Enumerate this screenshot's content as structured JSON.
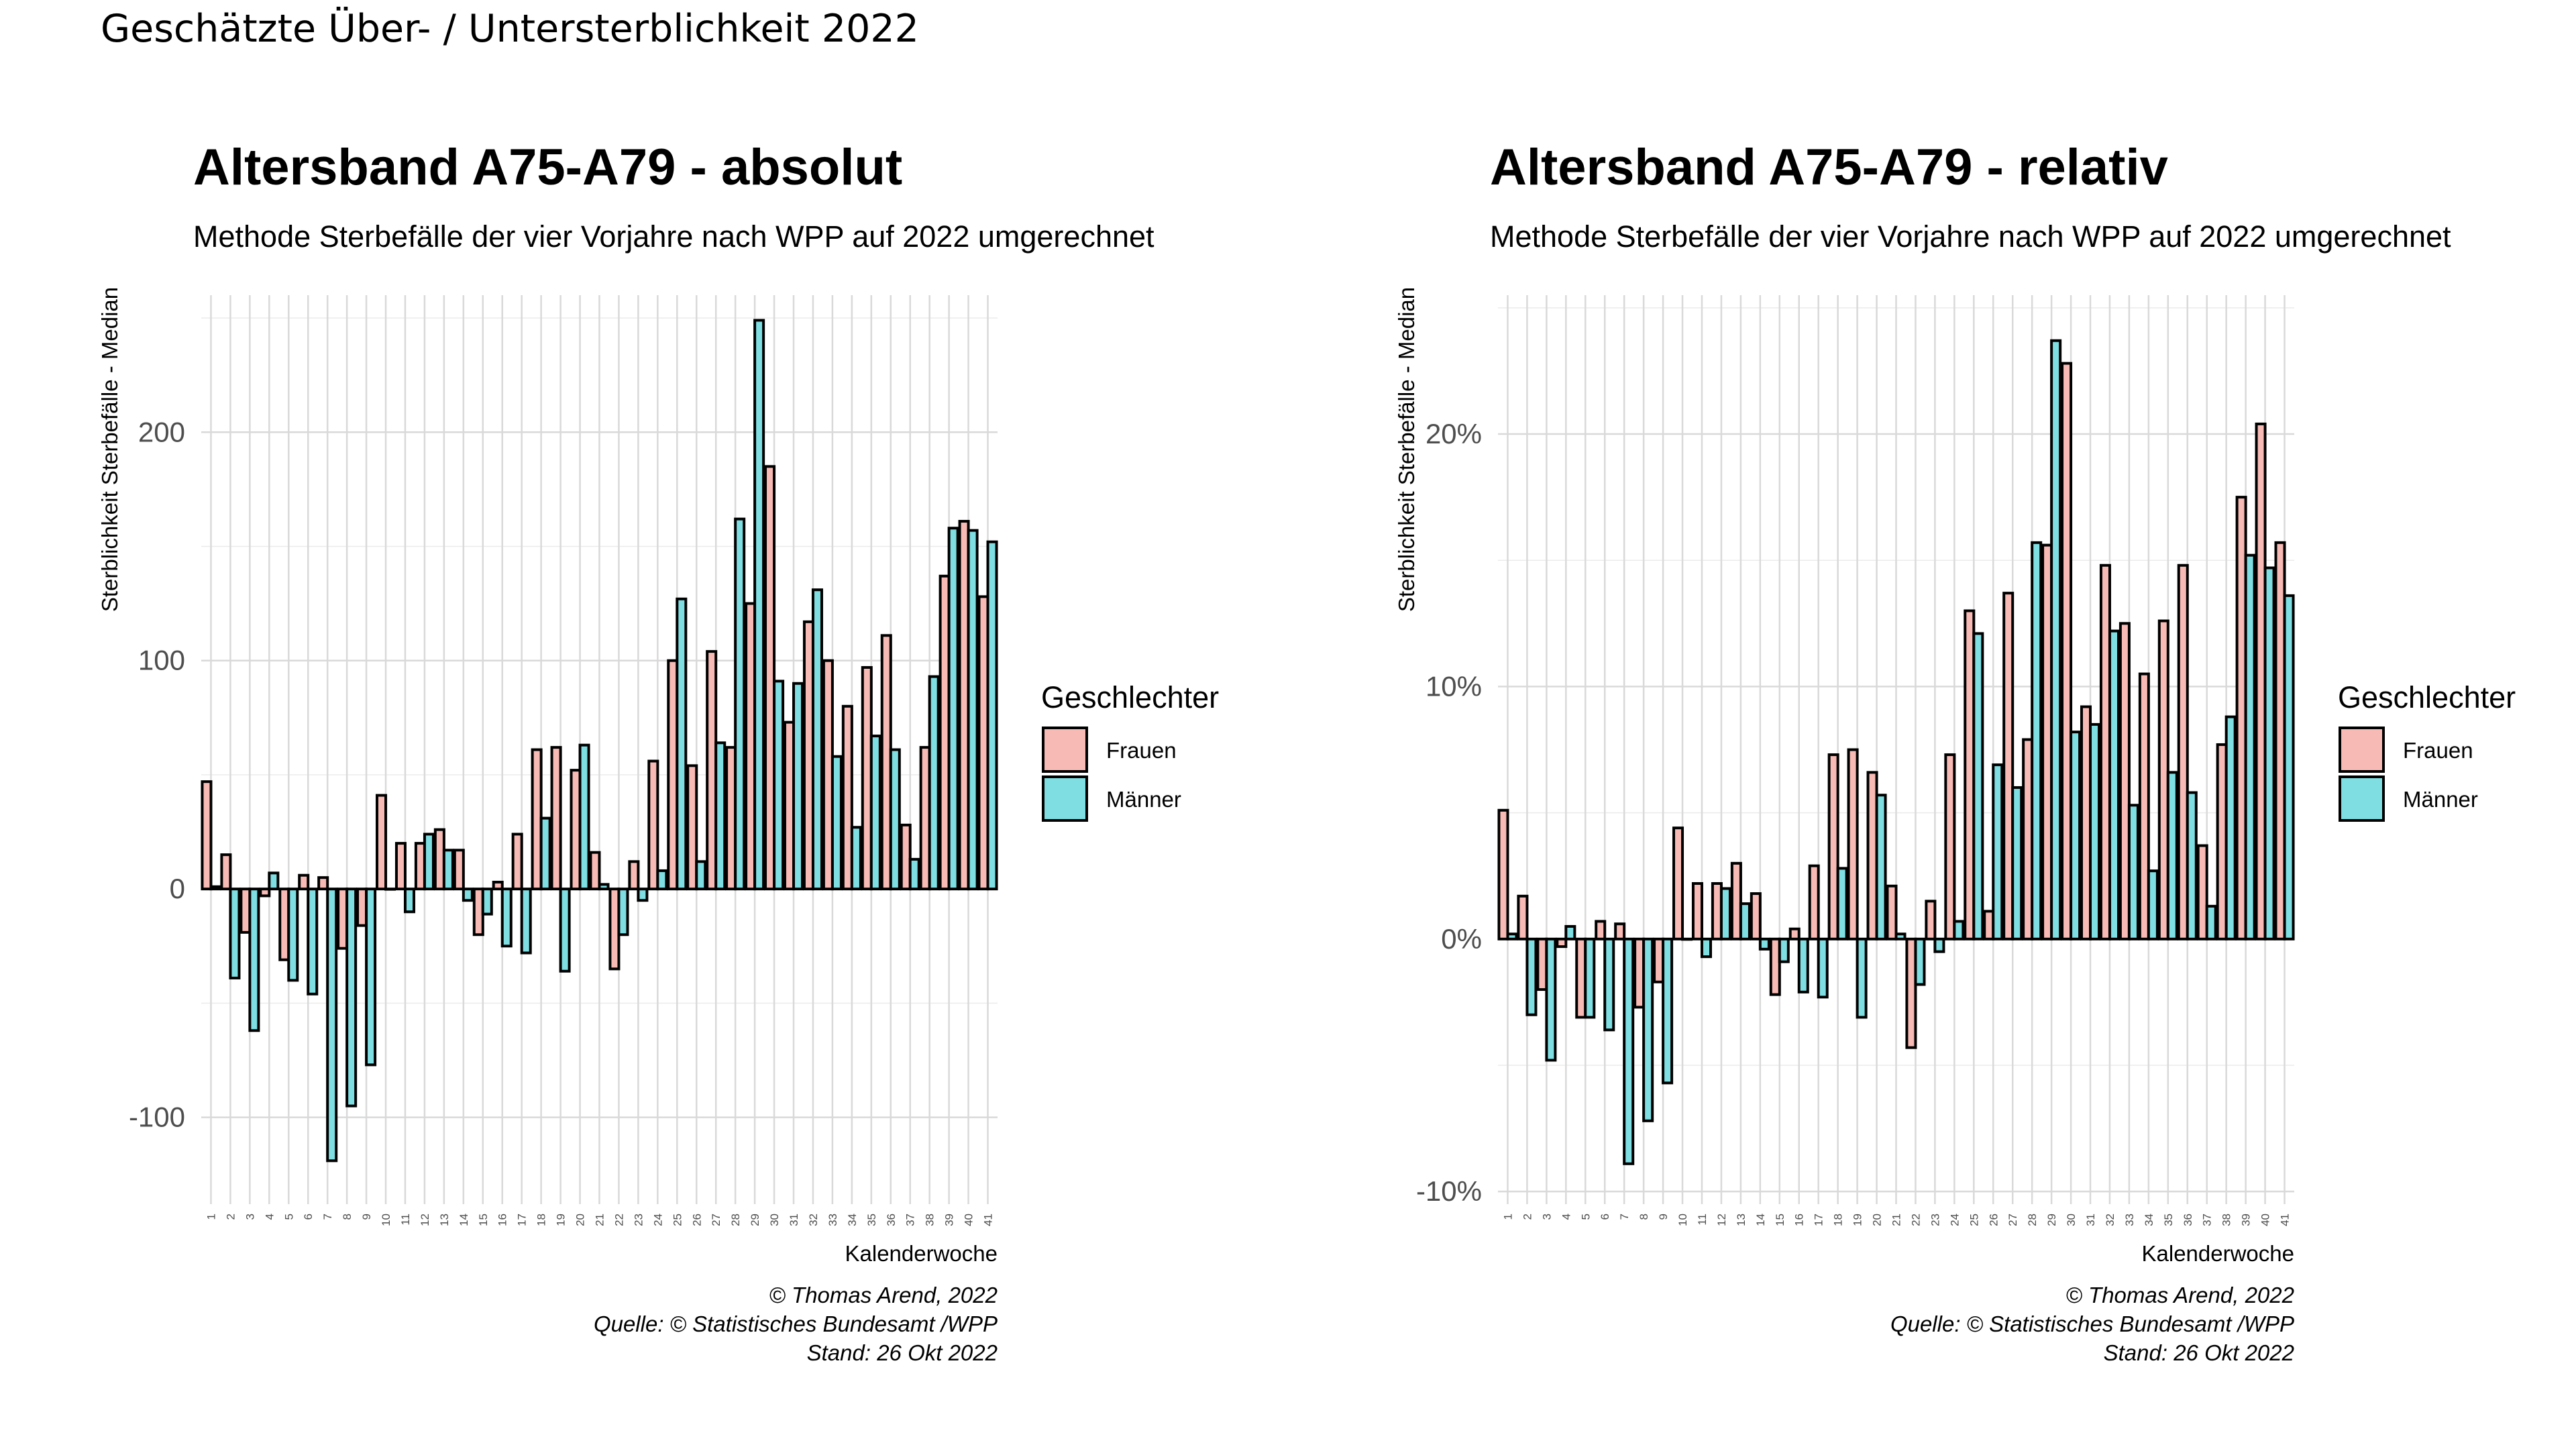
{
  "suptitle": "Geschätzte Über- / Untersterblichkeit 2022",
  "colors": {
    "Frauen": "#F8BAB4",
    "Männer": "#7EDEE2"
  },
  "chart_data": [
    {
      "type": "bar",
      "title": "Altersband A75-A79 - absolut",
      "subtitle": "Methode Sterbefälle der vier Vorjahre nach WPP auf 2022 umgerechnet",
      "xlabel": "Kalenderwoche",
      "ylabel": "Sterblichkeit Sterbefälle - Median",
      "ylim": [
        -138,
        260
      ],
      "yticks": [
        -100,
        0,
        100,
        200
      ],
      "ytick_labels": [
        "-100",
        "0",
        "100",
        "200"
      ],
      "grid": true,
      "legend": {
        "title": "Geschlechter",
        "position": "right",
        "entries": [
          "Frauen",
          "Männer"
        ]
      },
      "caption": [
        "© Thomas Arend, 2022",
        "Quelle: © Statistisches Bundesamt /WPP",
        "Stand: 26 Okt 2022"
      ],
      "categories": [
        "1",
        "2",
        "3",
        "4",
        "5",
        "6",
        "7",
        "8",
        "9",
        "10",
        "11",
        "12",
        "13",
        "14",
        "15",
        "16",
        "17",
        "18",
        "19",
        "20",
        "21",
        "22",
        "23",
        "24",
        "25",
        "26",
        "27",
        "28",
        "29",
        "30",
        "31",
        "32",
        "33",
        "34",
        "35",
        "36",
        "37",
        "38",
        "39",
        "40",
        "41"
      ],
      "series": [
        {
          "name": "Frauen",
          "values": [
            47,
            15,
            -19,
            -3,
            -31,
            6,
            5,
            -26,
            -16,
            41,
            20,
            20,
            26,
            17,
            -20,
            3,
            24,
            61,
            62,
            52,
            16,
            -35,
            12,
            56,
            100,
            54,
            104,
            62,
            125,
            185,
            73,
            117,
            100,
            80,
            97,
            111,
            28,
            62,
            137,
            161,
            128
          ]
        },
        {
          "name": "Männer",
          "values": [
            1,
            -39,
            -62,
            7,
            -40,
            -46,
            -119,
            -95,
            -77,
            0,
            -10,
            24,
            17,
            -5,
            -11,
            -25,
            -28,
            31,
            -36,
            63,
            2,
            -20,
            -5,
            8,
            127,
            12,
            64,
            162,
            249,
            91,
            90,
            131,
            58,
            27,
            67,
            61,
            13,
            93,
            158,
            157,
            152
          ]
        }
      ]
    },
    {
      "type": "bar",
      "title": "Altersband A75-A79 - relativ",
      "subtitle": "Methode Sterbefälle der vier Vorjahre nach WPP auf 2022 umgerechnet",
      "xlabel": "Kalenderwoche",
      "ylabel": "Sterblichkeit Sterbefälle - Median",
      "ylim": [
        -10.5,
        25.5
      ],
      "yticks": [
        -10,
        0,
        10,
        20
      ],
      "ytick_labels": [
        "-10%",
        "0%",
        "10%",
        "20%"
      ],
      "grid": true,
      "legend": {
        "title": "Geschlechter",
        "position": "right",
        "entries": [
          "Frauen",
          "Männer"
        ]
      },
      "caption": [
        "© Thomas Arend, 2022",
        "Quelle: © Statistisches Bundesamt /WPP",
        "Stand: 26 Okt 2022"
      ],
      "categories": [
        "1",
        "2",
        "3",
        "4",
        "5",
        "6",
        "7",
        "8",
        "9",
        "10",
        "11",
        "12",
        "13",
        "14",
        "15",
        "16",
        "17",
        "18",
        "19",
        "20",
        "21",
        "22",
        "23",
        "24",
        "25",
        "26",
        "27",
        "28",
        "29",
        "30",
        "31",
        "32",
        "33",
        "34",
        "35",
        "36",
        "37",
        "38",
        "39",
        "40",
        "41"
      ],
      "series": [
        {
          "name": "Frauen",
          "values": [
            5.1,
            1.7,
            -2.0,
            -0.3,
            -3.1,
            0.7,
            0.6,
            -2.7,
            -1.7,
            4.4,
            2.2,
            2.2,
            3.0,
            1.8,
            -2.2,
            0.4,
            2.9,
            7.3,
            7.5,
            6.6,
            2.1,
            -4.3,
            1.5,
            7.3,
            13.0,
            1.1,
            13.7,
            7.9,
            15.6,
            22.8,
            9.2,
            14.8,
            12.5,
            10.5,
            12.6,
            14.8,
            3.7,
            7.7,
            17.5,
            20.4,
            15.7
          ]
        },
        {
          "name": "Männer",
          "values": [
            0.2,
            -3.0,
            -4.8,
            0.5,
            -3.1,
            -3.6,
            -8.9,
            -7.2,
            -5.7,
            0.0,
            -0.7,
            2.0,
            1.4,
            -0.4,
            -0.9,
            -2.1,
            -2.3,
            2.8,
            -3.1,
            5.7,
            0.2,
            -1.8,
            -0.5,
            0.7,
            12.1,
            6.9,
            6.0,
            15.7,
            23.7,
            8.2,
            8.5,
            12.2,
            5.3,
            2.7,
            6.6,
            5.8,
            1.3,
            8.8,
            15.2,
            14.7,
            13.6
          ]
        }
      ]
    }
  ]
}
